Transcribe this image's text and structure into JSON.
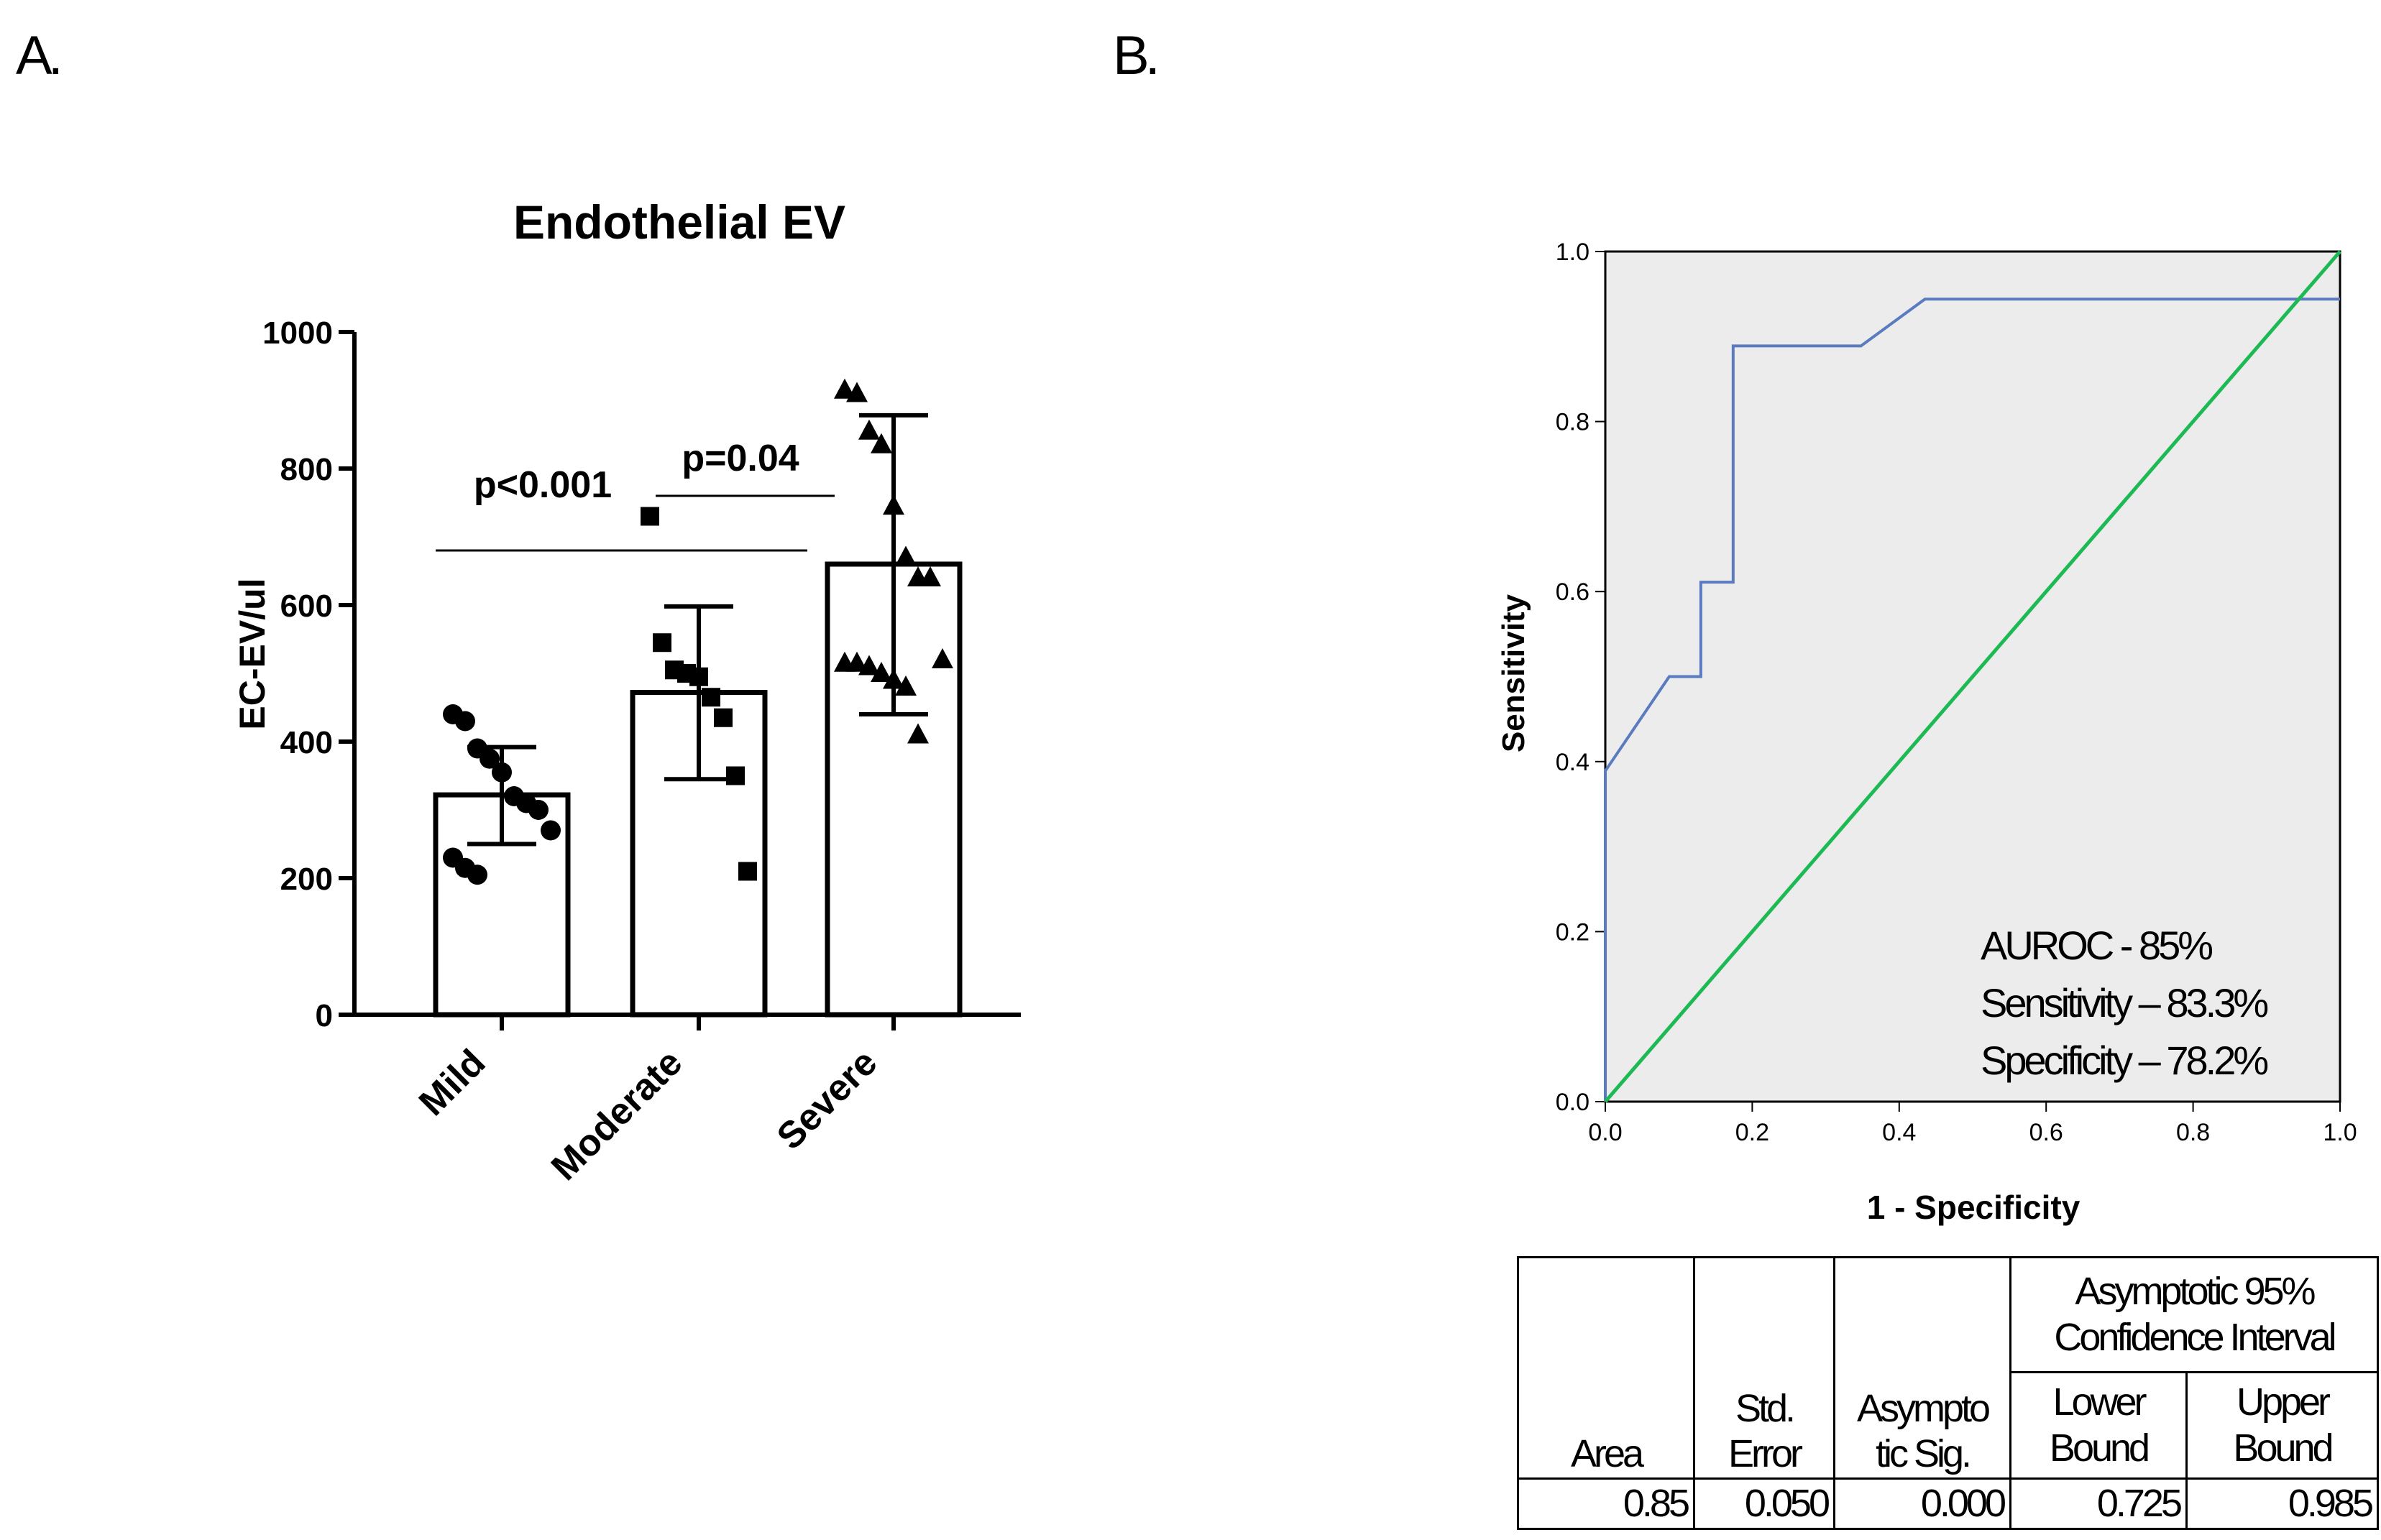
{
  "panels": {
    "a": "A.",
    "b": "B."
  },
  "chart_data": [
    {
      "type": "bar",
      "title": "Endothelial EV",
      "xlabel": "",
      "ylabel": "EC-EV/ul",
      "ylim": [
        0,
        1000
      ],
      "yticks": [
        "0",
        "200",
        "400",
        "600",
        "800",
        "1000"
      ],
      "ytick_values": [
        0,
        200,
        400,
        600,
        800,
        1000
      ],
      "categories": [
        "Mild",
        "Moderate",
        "Severe"
      ],
      "values": [
        322,
        472,
        660
      ],
      "error_sd": [
        [
          250,
          392
        ],
        [
          345,
          598
        ],
        [
          440,
          878
        ]
      ],
      "points": [
        {
          "group": "Mild",
          "marker": "circle",
          "values": [
            440,
            430,
            390,
            375,
            355,
            320,
            310,
            300,
            270,
            230,
            215,
            205
          ]
        },
        {
          "group": "Moderate",
          "marker": "square",
          "values": [
            730,
            545,
            505,
            500,
            495,
            465,
            435,
            350,
            210
          ]
        },
        {
          "group": "Severe",
          "marker": "triangle",
          "values": [
            915,
            910,
            855,
            835,
            745,
            670,
            640,
            640,
            520,
            515,
            515,
            510,
            500,
            490,
            480,
            410
          ]
        }
      ],
      "annotations": [
        {
          "text": "p<0.001",
          "from": "Mild",
          "to": "Severe",
          "y": 680
        },
        {
          "text": "p=0.04",
          "from": "Moderate",
          "to": "Severe",
          "y": 760
        }
      ]
    },
    {
      "type": "line",
      "xlabel": "1 - Specificity",
      "ylabel": "Sensitivity",
      "xlim": [
        0,
        1
      ],
      "ylim": [
        0,
        1
      ],
      "xticks": [
        "0.0",
        "0.2",
        "0.4",
        "0.6",
        "0.8",
        "1.0"
      ],
      "yticks": [
        "0.0",
        "0.2",
        "0.4",
        "0.6",
        "0.8",
        "1.0"
      ],
      "tick_values": [
        0,
        0.2,
        0.4,
        0.6,
        0.8,
        1.0
      ],
      "series": [
        {
          "color": "#5b7bc0",
          "x": [
            0,
            0,
            0.087,
            0.13,
            0.13,
            0.174,
            0.174,
            0.348,
            0.435,
            1.0
          ],
          "y": [
            0,
            0.389,
            0.5,
            0.5,
            0.611,
            0.611,
            0.889,
            0.889,
            0.944,
            0.944
          ]
        },
        {
          "color": "#1db954",
          "x": [
            0,
            1
          ],
          "y": [
            0,
            1
          ]
        }
      ],
      "annotations": [
        "AUROC - 85%",
        "Sensitivity – 83.3%",
        "Specificity – 78.2%"
      ],
      "background": "#ececec"
    },
    {
      "type": "table",
      "headers": {
        "area": "Area",
        "std_error": [
          "Std.",
          "Error"
        ],
        "asymp_sig": [
          "Asympto",
          "tic Sig."
        ],
        "ci": [
          "Asymptotic 95%",
          "Confidence Interval"
        ],
        "lower": [
          "Lower",
          "Bound"
        ],
        "upper": [
          "Upper",
          "Bound"
        ]
      },
      "rows": [
        {
          "area": "0.85",
          "std_error": "0.050",
          "asymp_sig": "0.000",
          "lower": "0.725",
          "upper": "0.985"
        }
      ]
    }
  ]
}
